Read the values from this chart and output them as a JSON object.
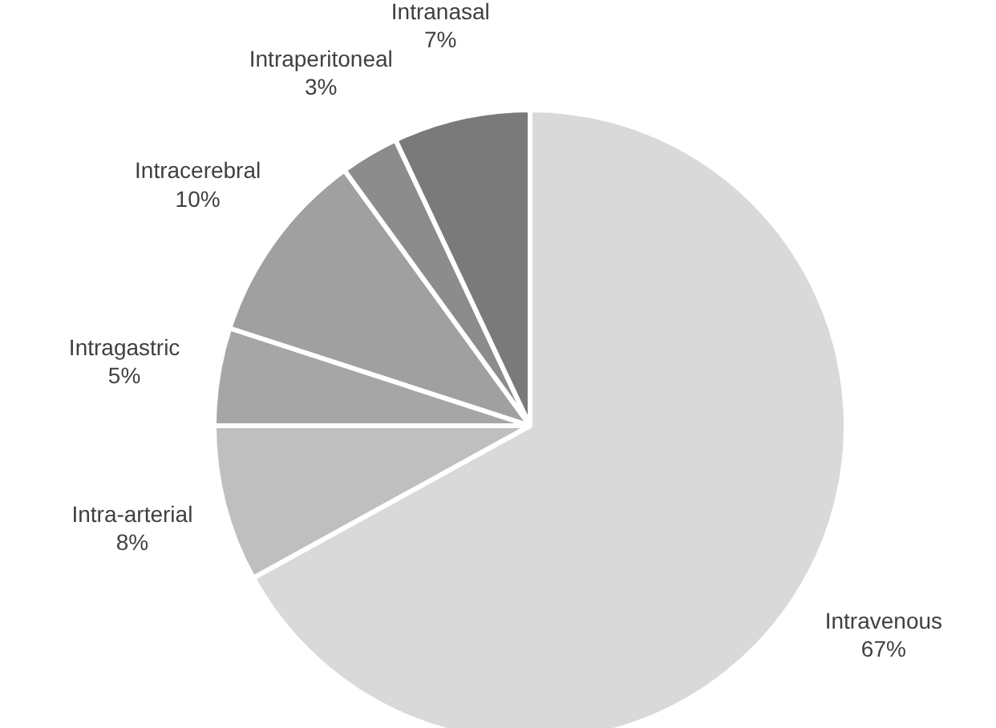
{
  "chart_data": {
    "type": "pie",
    "categories": [
      "Intravenous",
      "Intra-arterial",
      "Intragastric",
      "Intracerebral",
      "Intraperitoneal",
      "Intranasal"
    ],
    "values": [
      67,
      8,
      5,
      10,
      3,
      7
    ],
    "colors": [
      "#d9d9d9",
      "#bfbfbf",
      "#a6a6a6",
      "#a0a0a0",
      "#8c8c8c",
      "#7a7a7a"
    ],
    "value_labels": [
      "67%",
      "8%",
      "5%",
      "10%",
      "3%",
      "7%"
    ]
  }
}
